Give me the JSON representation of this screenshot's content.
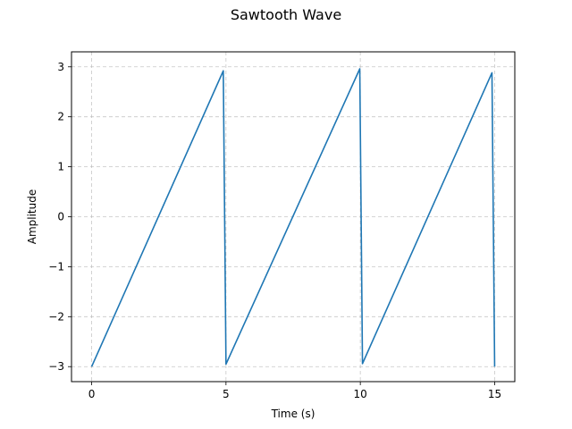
{
  "chart_data": {
    "type": "line",
    "title": "Sawtooth Wave",
    "xlabel": "Time (s)",
    "ylabel": "Amplitude",
    "xlim": [
      -0.75,
      15.75
    ],
    "ylim": [
      -3.3,
      3.3
    ],
    "xticks": [
      0,
      5,
      10,
      15
    ],
    "yticks": [
      -3,
      -2,
      -1,
      0,
      1,
      2,
      3
    ],
    "ytick_labels": [
      "−3",
      "−2",
      "−1",
      "0",
      "1",
      "2",
      "3"
    ],
    "grid": true,
    "series": [
      {
        "color": "#1f77b4",
        "x": [
          0.0,
          4.9,
          5.0,
          9.98,
          10.08,
          14.9,
          15.0
        ],
        "y": [
          -3.0,
          2.92,
          -2.95,
          2.96,
          -2.94,
          2.88,
          -3.0
        ]
      }
    ]
  }
}
